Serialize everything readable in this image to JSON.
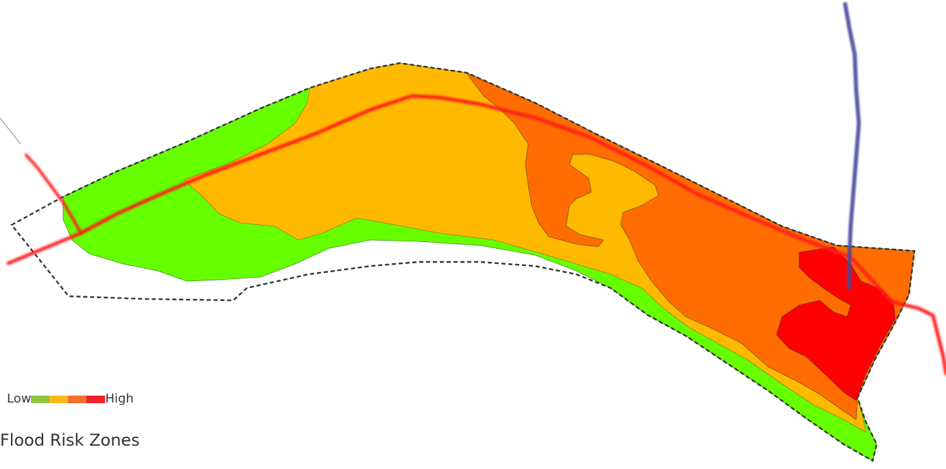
{
  "map": {
    "title": "Flood Risk Zones",
    "legend": {
      "low_label": "Low",
      "high_label": "High",
      "levels": [
        {
          "level": 1,
          "color": "#8cc63f"
        },
        {
          "level": 2,
          "color": "#fbb917"
        },
        {
          "level": 3,
          "color": "#f2712a"
        },
        {
          "level": 4,
          "color": "#ee2229"
        }
      ]
    },
    "zone_colors": {
      "low": "#66ff00",
      "moderate": "#ffba00",
      "elevated": "#ff6d00",
      "high": "#ff0000"
    },
    "features": {
      "main_road_color": "#ff1a1a",
      "river_color": "#4a4a9c",
      "boundary_style": "dashed"
    }
  }
}
